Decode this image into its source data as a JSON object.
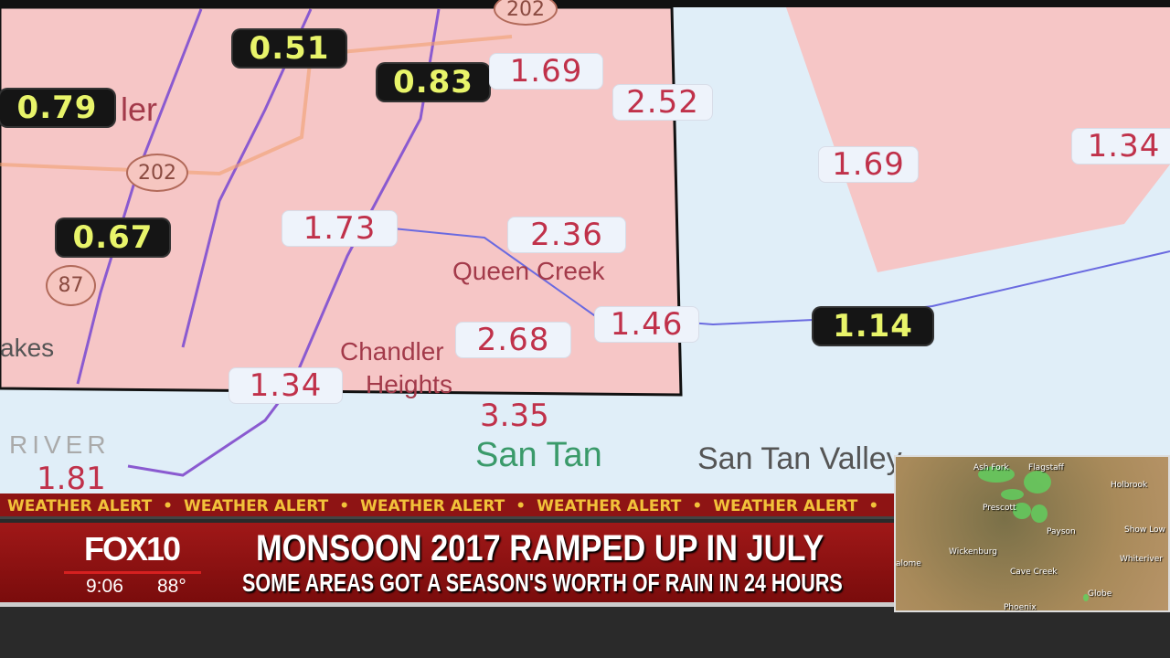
{
  "map": {
    "highlighted_values": [
      "0.51",
      "0.83",
      "0.79",
      "0.67",
      "1.14"
    ],
    "values": [
      "1.69",
      "2.52",
      "1.69",
      "1.34",
      "1.73",
      "2.36",
      "1.46",
      "2.68",
      "1.34",
      "1.81"
    ],
    "plain_value": "3.35",
    "places": {
      "queen_creek": "Queen Creek",
      "chandler_heights_1": "Chandler",
      "chandler_heights_2": "Heights",
      "san_tan": "San Tan",
      "san_tan_valley": "San Tan Valley",
      "lakes": "akes",
      "river": "RIVER",
      "chandler": "ler"
    },
    "routes": [
      "202",
      "87",
      "202"
    ],
    "colors": {
      "region": "#f6c6c6",
      "background": "#e0eef8",
      "value": "#c0314a"
    }
  },
  "ticker": {
    "text": "WEATHER ALERT",
    "separator": "•"
  },
  "lower_third": {
    "station": "FOX10",
    "time": "9:06",
    "temperature": "88°",
    "headline": "MONSOON 2017 RAMPED UP IN JULY",
    "subheadline": "SOME AREAS GOT A SEASON'S WORTH OF RAIN IN 24 HOURS"
  },
  "radar": {
    "places": [
      "Ash Fork",
      "Flagstaff",
      "Holbrook",
      "Prescott",
      "Payson",
      "Show Low",
      "Wickenburg",
      "Cave Creek",
      "Whiteriver",
      "Phoenix",
      "Globe",
      "alome"
    ]
  }
}
